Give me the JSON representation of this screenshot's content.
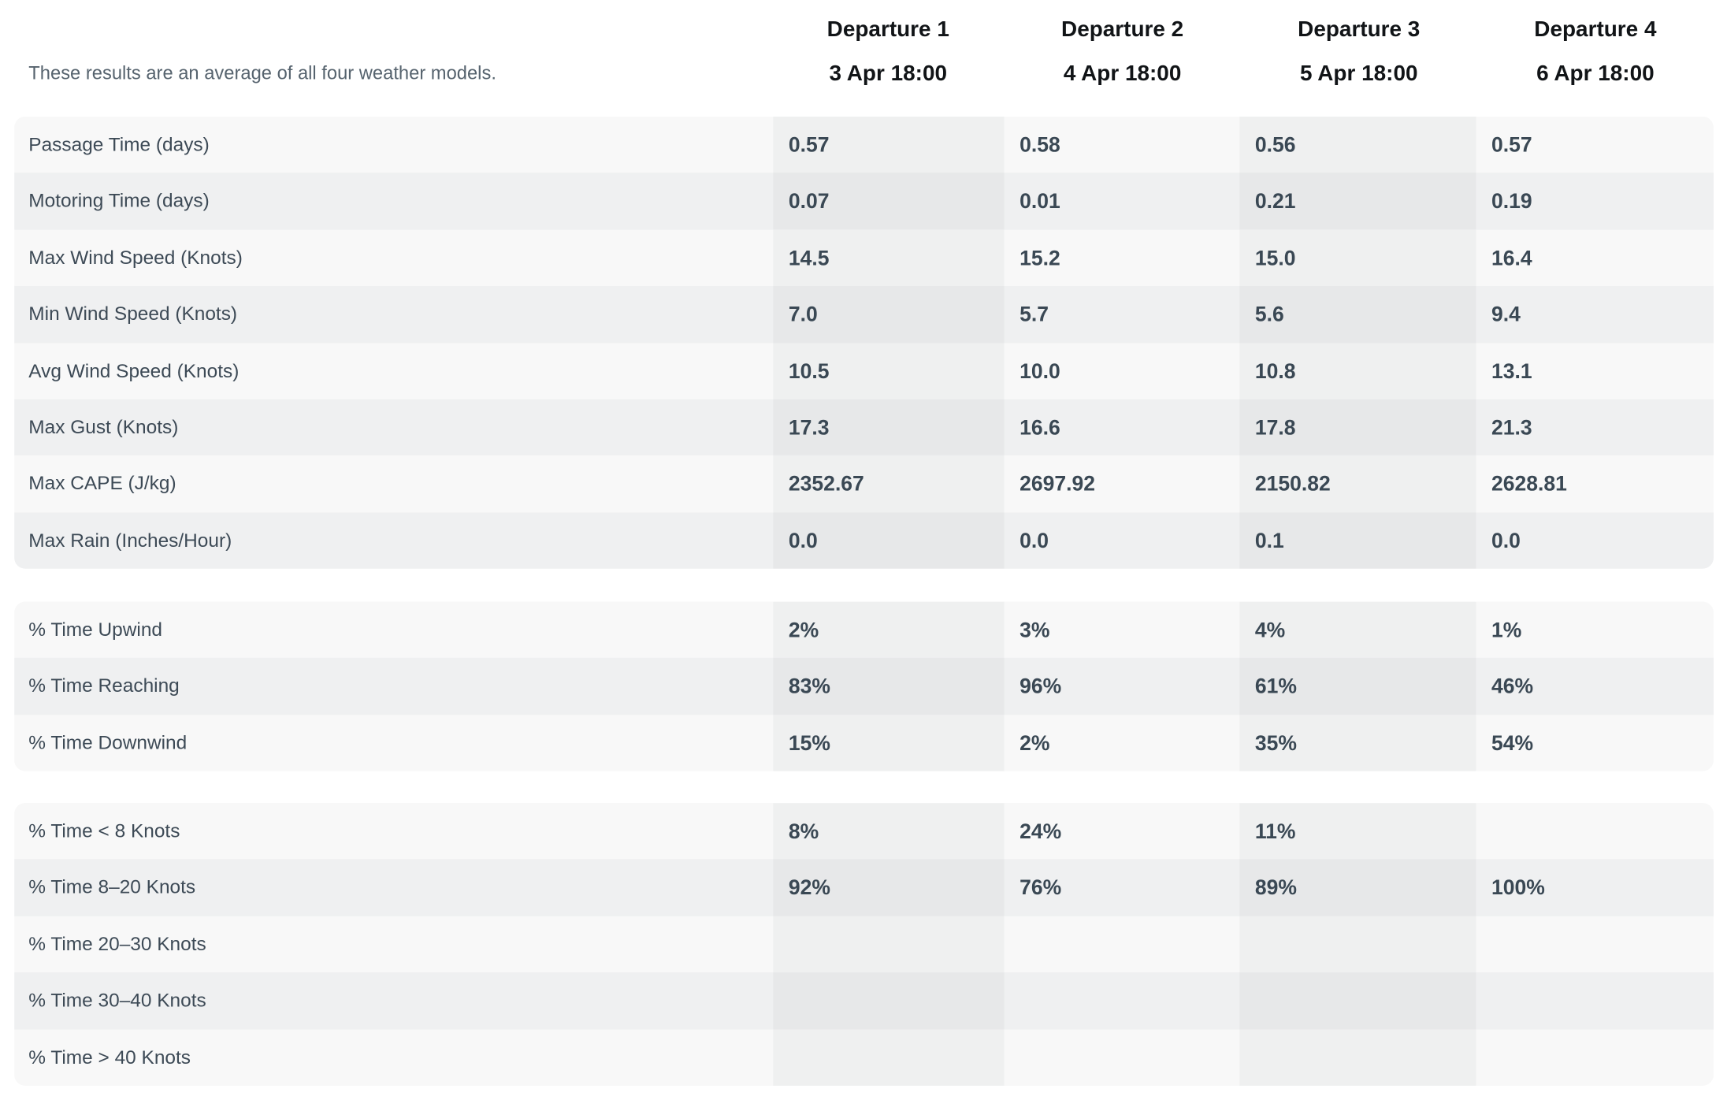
{
  "header": {
    "subtitle": "These results are an average of all four weather models.",
    "departures": [
      {
        "title": "Departure 1",
        "date": "3 Apr 18:00"
      },
      {
        "title": "Departure 2",
        "date": "4 Apr 18:00"
      },
      {
        "title": "Departure 3",
        "date": "5 Apr 18:00"
      },
      {
        "title": "Departure 4",
        "date": "6 Apr 18:00"
      }
    ]
  },
  "groups": [
    {
      "rows": [
        {
          "label": "Passage Time (days)",
          "values": [
            "0.57",
            "0.58",
            "0.56",
            "0.57"
          ]
        },
        {
          "label": "Motoring Time (days)",
          "values": [
            "0.07",
            "0.01",
            "0.21",
            "0.19"
          ]
        },
        {
          "label": "Max Wind Speed (Knots)",
          "values": [
            "14.5",
            "15.2",
            "15.0",
            "16.4"
          ]
        },
        {
          "label": "Min Wind Speed (Knots)",
          "values": [
            "7.0",
            "5.7",
            "5.6",
            "9.4"
          ]
        },
        {
          "label": "Avg Wind Speed (Knots)",
          "values": [
            "10.5",
            "10.0",
            "10.8",
            "13.1"
          ]
        },
        {
          "label": "Max Gust (Knots)",
          "values": [
            "17.3",
            "16.6",
            "17.8",
            "21.3"
          ]
        },
        {
          "label": "Max CAPE (J/kg)",
          "values": [
            "2352.67",
            "2697.92",
            "2150.82",
            "2628.81"
          ]
        },
        {
          "label": "Max Rain (Inches/Hour)",
          "values": [
            "0.0",
            "0.0",
            "0.1",
            "0.0"
          ]
        }
      ]
    },
    {
      "rows": [
        {
          "label": "% Time Upwind",
          "values": [
            "2%",
            "3%",
            "4%",
            "1%"
          ]
        },
        {
          "label": "% Time Reaching",
          "values": [
            "83%",
            "96%",
            "61%",
            "46%"
          ]
        },
        {
          "label": "% Time Downwind",
          "values": [
            "15%",
            "2%",
            "35%",
            "54%"
          ]
        }
      ]
    },
    {
      "rows": [
        {
          "label": "% Time < 8 Knots",
          "values": [
            "8%",
            "24%",
            "11%",
            ""
          ]
        },
        {
          "label": "% Time 8–20 Knots",
          "values": [
            "92%",
            "76%",
            "89%",
            "100%"
          ]
        },
        {
          "label": "% Time 20–30 Knots",
          "values": [
            "",
            "",
            "",
            ""
          ]
        },
        {
          "label": "% Time 30–40 Knots",
          "values": [
            "",
            "",
            "",
            ""
          ]
        },
        {
          "label": "% Time > 40 Knots",
          "values": [
            "",
            "",
            "",
            ""
          ]
        }
      ]
    }
  ]
}
